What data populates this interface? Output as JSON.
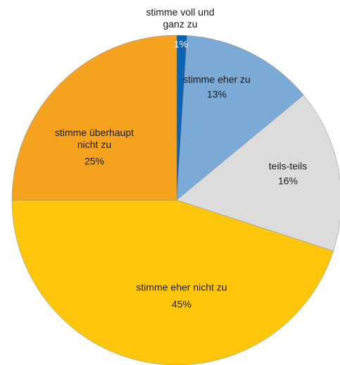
{
  "chart_data": {
    "type": "pie",
    "categories": [
      "stimme voll und ganz zu",
      "stimme eher zu",
      "teils-teils",
      "stimme eher nicht zu",
      "stimme überhaupt nicht zu"
    ],
    "values": [
      1,
      13,
      16,
      45,
      25
    ],
    "value_labels": [
      "1%",
      "13%",
      "16%",
      "45%",
      "25%"
    ],
    "colors": [
      "#0a63b3",
      "#7baad7",
      "#dcdcdc",
      "#ffc60b",
      "#f5a31f"
    ]
  }
}
